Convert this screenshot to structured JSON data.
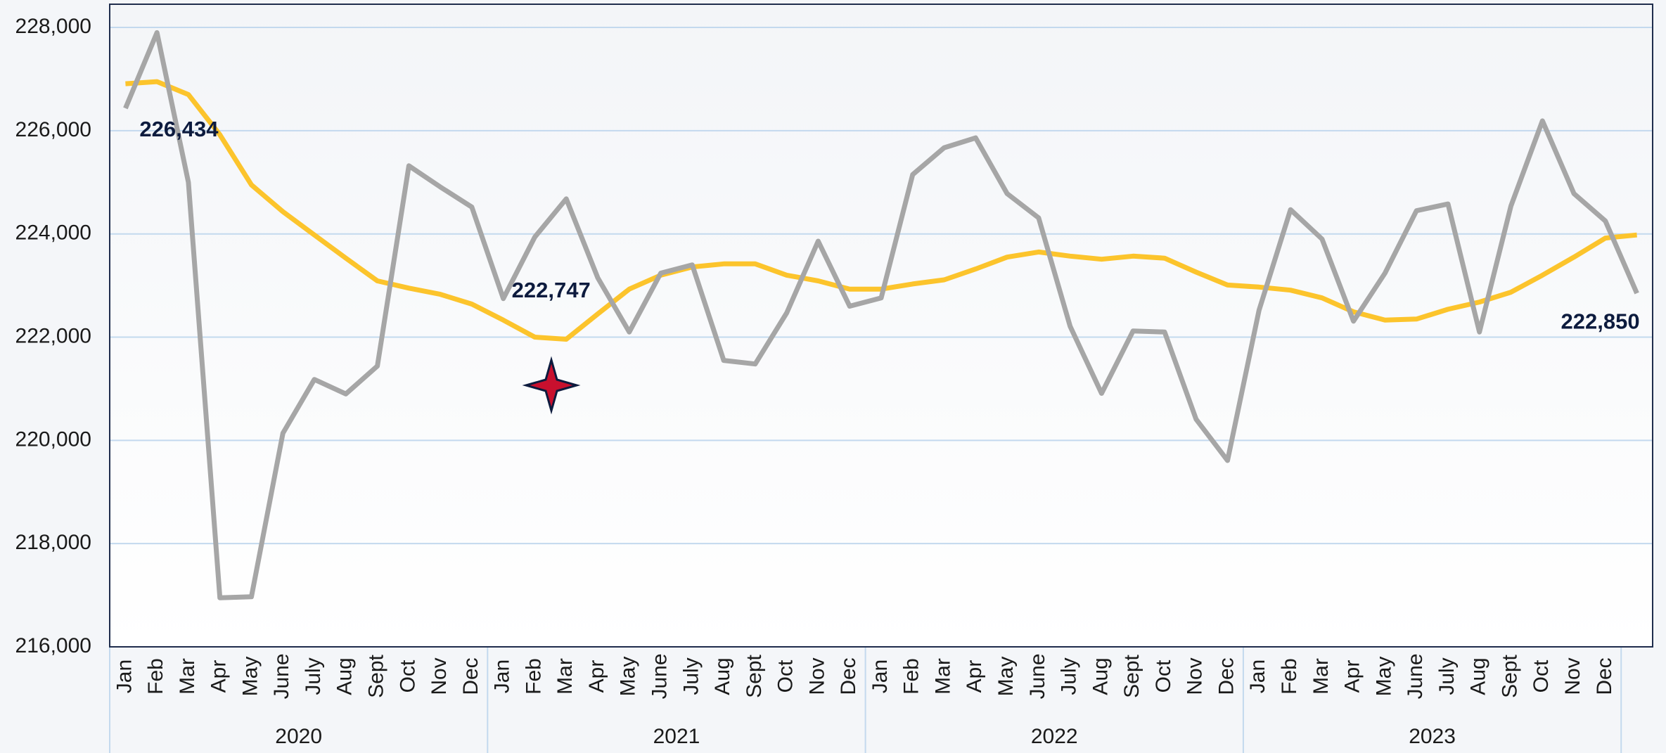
{
  "chart_data": {
    "type": "line",
    "categories": [
      "Jan",
      "Feb",
      "Mar",
      "Apr",
      "May",
      "June",
      "July",
      "Aug",
      "Sept",
      "Oct",
      "Nov",
      "Dec",
      "Jan",
      "Feb",
      "Mar",
      "Apr",
      "May",
      "June",
      "July",
      "Aug",
      "Sept",
      "Oct",
      "Nov",
      "Dec",
      "Jan",
      "Feb",
      "Mar",
      "Apr",
      "May",
      "June",
      "July",
      "Aug",
      "Sept",
      "Oct",
      "Nov",
      "Dec",
      "Jan",
      "Feb",
      "Mar",
      "Apr",
      "May",
      "June",
      "July",
      "Aug",
      "Sept",
      "Oct",
      "Nov",
      "Dec",
      null
    ],
    "x_groups": [
      "2020",
      "2021",
      "2022",
      "2023"
    ],
    "series": [
      {
        "color": "#a6a6a6",
        "values": [
          226434,
          227900,
          225000,
          216950,
          216970,
          220140,
          221180,
          220900,
          221440,
          225320,
          224910,
          224520,
          222747,
          223940,
          224680,
          223150,
          222100,
          223240,
          223400,
          221550,
          221480,
          222470,
          223860,
          222600,
          222760,
          225150,
          225670,
          225860,
          224780,
          224310,
          222210,
          220910,
          222120,
          222100,
          220410,
          219610,
          222520,
          224470,
          223900,
          222310,
          223240,
          224450,
          224580,
          222100,
          224540,
          226190,
          224780,
          224250,
          222850
        ],
        "value_labels": [
          "226,434",
          null,
          null,
          null,
          null,
          null,
          null,
          null,
          null,
          null,
          null,
          null,
          "222,747",
          null,
          null,
          null,
          null,
          null,
          null,
          null,
          null,
          null,
          null,
          null,
          null,
          null,
          null,
          null,
          null,
          null,
          null,
          null,
          null,
          null,
          null,
          null,
          null,
          null,
          null,
          null,
          null,
          null,
          null,
          null,
          null,
          null,
          null,
          null,
          "222,850"
        ]
      },
      {
        "color": "#fcc42c",
        "values": [
          226910,
          226950,
          226700,
          225920,
          224950,
          224430,
          223980,
          223530,
          223090,
          222950,
          222830,
          222640,
          222330,
          222000,
          221960,
          222450,
          222930,
          223200,
          223360,
          223420,
          223420,
          223200,
          223090,
          222930,
          222930,
          223030,
          223110,
          223320,
          223550,
          223650,
          223570,
          223510,
          223570,
          223530,
          223260,
          223010,
          222970,
          222910,
          222760,
          222490,
          222330,
          222350,
          222540,
          222680,
          222870,
          223200,
          223550,
          223920,
          223980
        ]
      }
    ],
    "ylim": [
      216000,
      228450
    ],
    "yticks": [
      {
        "value": 216000,
        "label": "216,000"
      },
      {
        "value": 218000,
        "label": "218,000"
      },
      {
        "value": 220000,
        "label": "220,000"
      },
      {
        "value": 222000,
        "label": "222,000"
      },
      {
        "value": 224000,
        "label": "224,000"
      },
      {
        "value": 226000,
        "label": "226,000"
      },
      {
        "value": 228000,
        "label": "228,000"
      }
    ],
    "grid": true
  }
}
